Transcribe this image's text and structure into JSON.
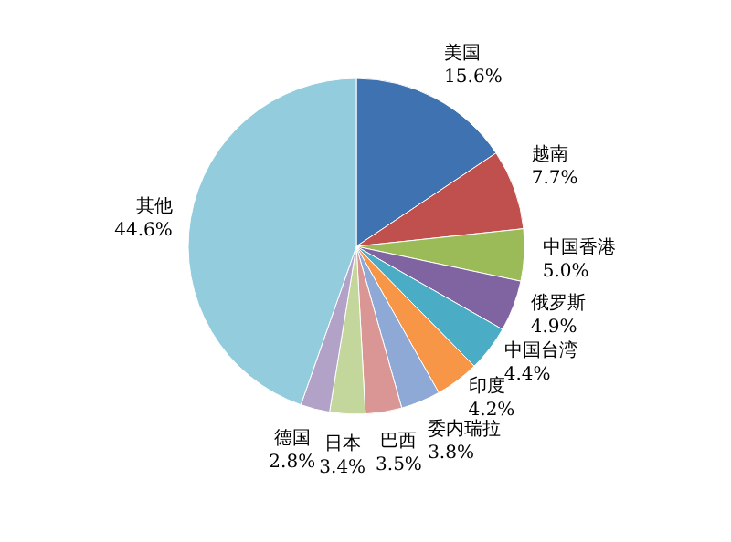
{
  "chart_data": {
    "type": "pie",
    "categories": [
      "美国",
      "越南",
      "中国香港",
      "俄罗斯",
      "中国台湾",
      "印度",
      "委内瑞拉",
      "巴西",
      "日本",
      "德国",
      "其他"
    ],
    "values": [
      15.6,
      7.7,
      5.0,
      4.9,
      4.4,
      4.2,
      3.8,
      3.5,
      3.4,
      2.8,
      44.6
    ],
    "value_labels": [
      "15.6%",
      "7.7%",
      "5.0%",
      "4.9%",
      "4.4%",
      "4.2%",
      "3.8%",
      "3.5%",
      "3.4%",
      "2.8%",
      "44.6%"
    ],
    "colors": [
      "#3f72b0",
      "#c0504d",
      "#9bbb59",
      "#8064a2",
      "#4bacc6",
      "#f79646",
      "#8fa9d6",
      "#da9694",
      "#c3d69b",
      "#b3a2c7",
      "#93cddd"
    ]
  }
}
